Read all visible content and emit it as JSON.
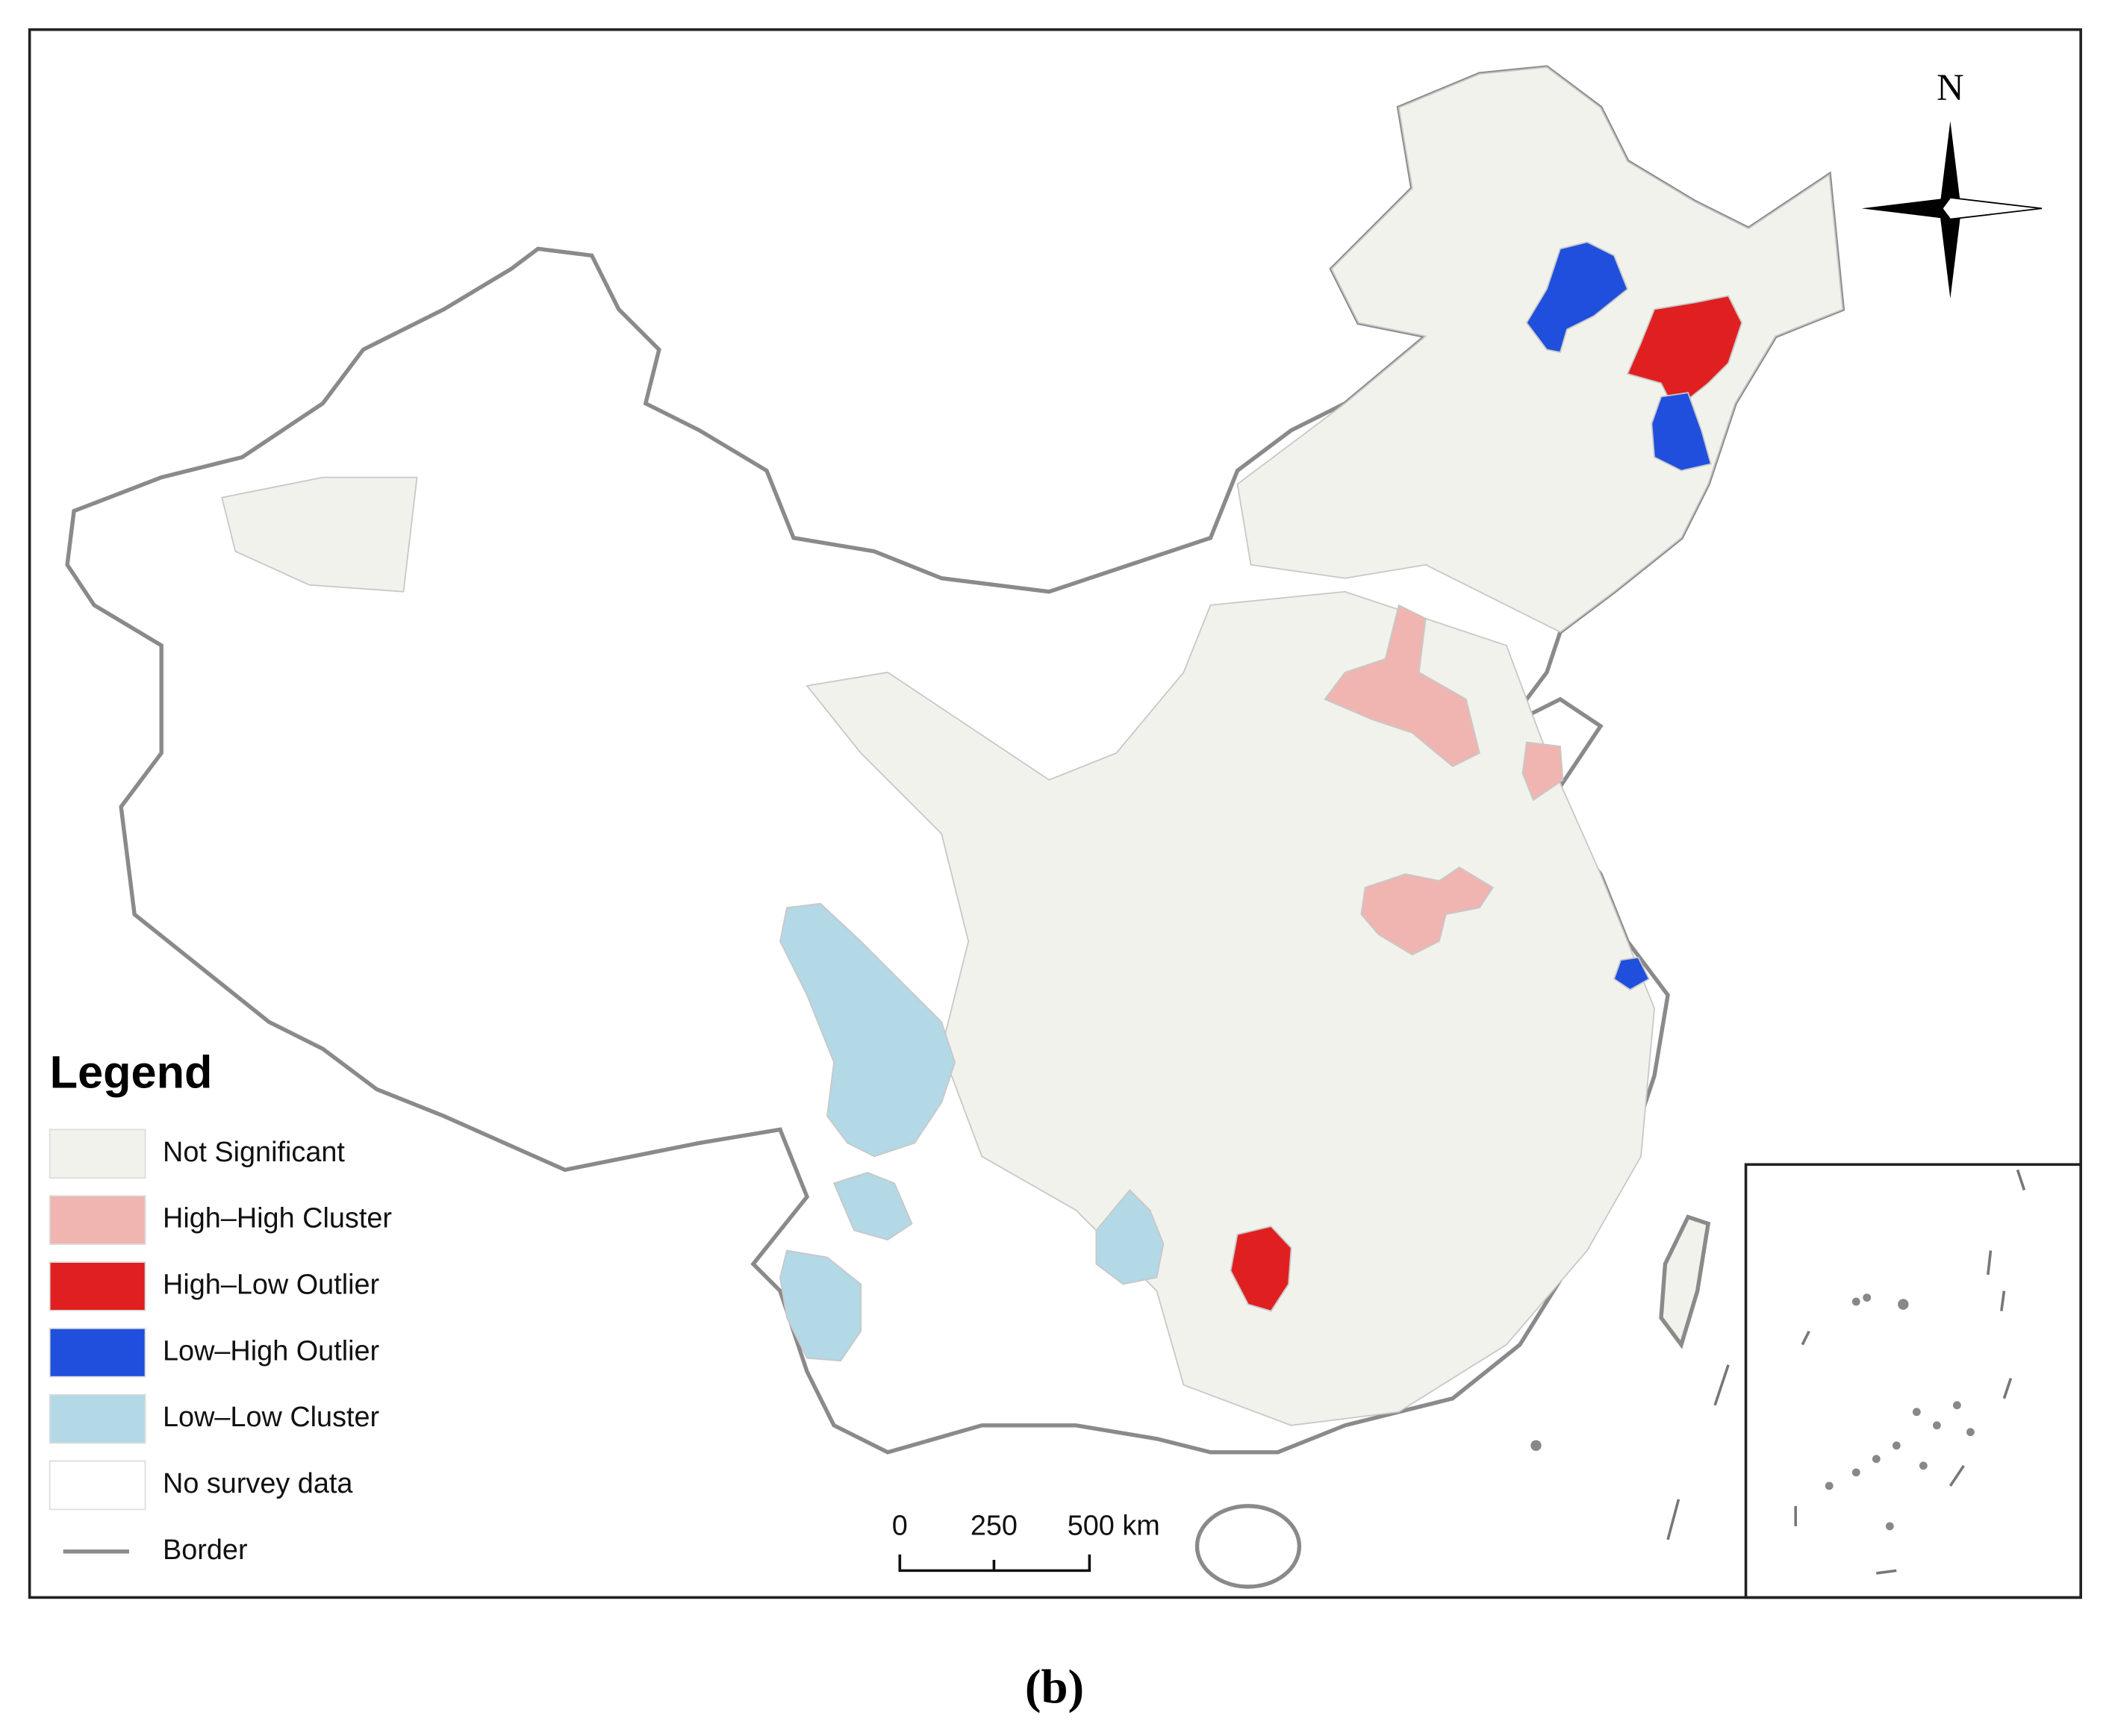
{
  "legend": {
    "title": "Legend",
    "items": [
      {
        "label": "Not Significant",
        "color": "#f1f2ec"
      },
      {
        "label": "High–High Cluster",
        "color": "#f0b5b0"
      },
      {
        "label": "High–Low Outlier",
        "color": "#e02020"
      },
      {
        "label": "Low–High Outlier",
        "color": "#1f4fdc"
      },
      {
        "label": "Low–Low Cluster",
        "color": "#b3d8e6"
      },
      {
        "label": "No survey data",
        "color": "#ffffff"
      },
      {
        "label": "Border",
        "color": "#8a8a8a"
      }
    ]
  },
  "scale_bar": {
    "labels": [
      "0",
      "250",
      "500 km"
    ]
  },
  "north_arrow": {
    "label": "N"
  },
  "caption": "(b)"
}
